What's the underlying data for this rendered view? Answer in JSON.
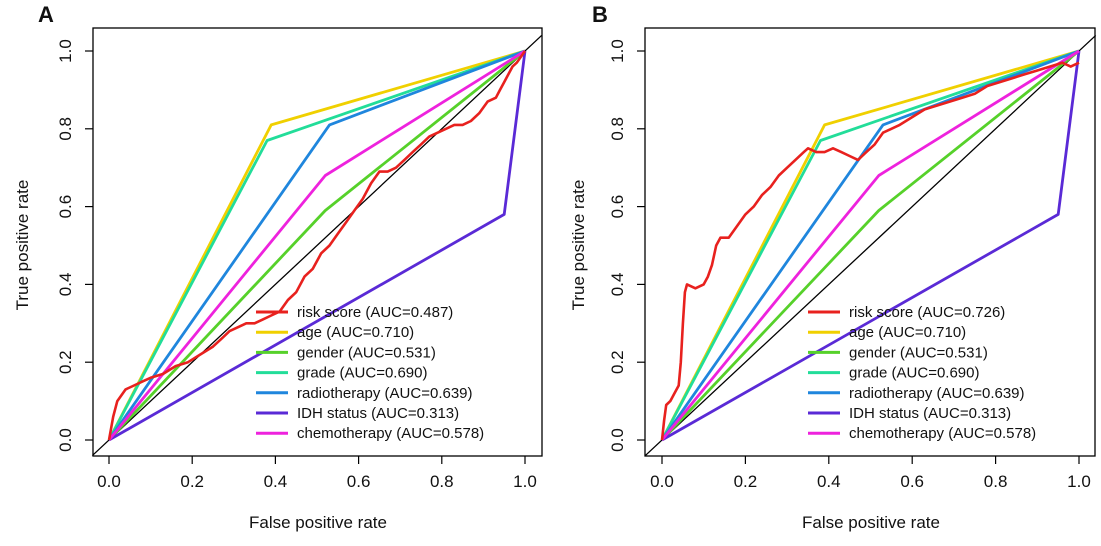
{
  "chart_data": [
    {
      "panel_label": "A",
      "type": "line",
      "xlabel": "False positive rate",
      "ylabel": "True positive rate",
      "xlim": [
        0,
        1
      ],
      "ylim": [
        0,
        1
      ],
      "xticks": [
        "0.0",
        "0.2",
        "0.4",
        "0.6",
        "0.8",
        "1.0"
      ],
      "yticks": [
        "0.0",
        "0.2",
        "0.4",
        "0.6",
        "0.8",
        "1.0"
      ],
      "reference_line": [
        [
          0,
          0
        ],
        [
          1,
          1
        ]
      ],
      "legend_position": "bottom-right",
      "series": [
        {
          "name": "risk score (AUC=0.487)",
          "color": "#e8211e",
          "points": [
            [
              0,
              0
            ],
            [
              0.01,
              0.06
            ],
            [
              0.02,
              0.1
            ],
            [
              0.04,
              0.13
            ],
            [
              0.06,
              0.14
            ],
            [
              0.08,
              0.15
            ],
            [
              0.1,
              0.16
            ],
            [
              0.13,
              0.17
            ],
            [
              0.16,
              0.19
            ],
            [
              0.19,
              0.2
            ],
            [
              0.22,
              0.22
            ],
            [
              0.25,
              0.24
            ],
            [
              0.27,
              0.26
            ],
            [
              0.29,
              0.28
            ],
            [
              0.31,
              0.29
            ],
            [
              0.33,
              0.3
            ],
            [
              0.35,
              0.3
            ],
            [
              0.37,
              0.31
            ],
            [
              0.39,
              0.32
            ],
            [
              0.41,
              0.33
            ],
            [
              0.43,
              0.36
            ],
            [
              0.45,
              0.38
            ],
            [
              0.47,
              0.42
            ],
            [
              0.49,
              0.44
            ],
            [
              0.51,
              0.48
            ],
            [
              0.53,
              0.5
            ],
            [
              0.55,
              0.53
            ],
            [
              0.57,
              0.56
            ],
            [
              0.59,
              0.59
            ],
            [
              0.61,
              0.62
            ],
            [
              0.63,
              0.66
            ],
            [
              0.65,
              0.69
            ],
            [
              0.67,
              0.69
            ],
            [
              0.69,
              0.7
            ],
            [
              0.71,
              0.72
            ],
            [
              0.73,
              0.74
            ],
            [
              0.75,
              0.76
            ],
            [
              0.77,
              0.78
            ],
            [
              0.79,
              0.79
            ],
            [
              0.81,
              0.8
            ],
            [
              0.83,
              0.81
            ],
            [
              0.85,
              0.81
            ],
            [
              0.87,
              0.82
            ],
            [
              0.89,
              0.84
            ],
            [
              0.91,
              0.87
            ],
            [
              0.93,
              0.88
            ],
            [
              0.94,
              0.9
            ],
            [
              0.95,
              0.92
            ],
            [
              0.96,
              0.94
            ],
            [
              0.97,
              0.96
            ],
            [
              0.98,
              0.97
            ],
            [
              1,
              1
            ]
          ]
        },
        {
          "name": "age (AUC=0.710)",
          "color": "#f0d000",
          "points": [
            [
              0,
              0
            ],
            [
              0.39,
              0.81
            ],
            [
              1,
              1
            ]
          ]
        },
        {
          "name": "gender (AUC=0.531)",
          "color": "#56d12a",
          "points": [
            [
              0,
              0
            ],
            [
              0.52,
              0.59
            ],
            [
              1,
              1
            ]
          ]
        },
        {
          "name": "grade (AUC=0.690)",
          "color": "#22dd99",
          "points": [
            [
              0,
              0
            ],
            [
              0.38,
              0.77
            ],
            [
              1,
              1
            ]
          ]
        },
        {
          "name": "radiotherapy (AUC=0.639)",
          "color": "#1f86dd",
          "points": [
            [
              0,
              0
            ],
            [
              0.53,
              0.81
            ],
            [
              1,
              1
            ]
          ]
        },
        {
          "name": "IDH status (AUC=0.313)",
          "color": "#5a2ad6",
          "points": [
            [
              0,
              0
            ],
            [
              0.95,
              0.58
            ],
            [
              1,
              1
            ]
          ]
        },
        {
          "name": "chemotherapy (AUC=0.578)",
          "color": "#ee22dd",
          "points": [
            [
              0,
              0
            ],
            [
              0.52,
              0.68
            ],
            [
              1,
              1
            ]
          ]
        }
      ]
    },
    {
      "panel_label": "B",
      "type": "line",
      "xlabel": "False positive rate",
      "ylabel": "True positive rate",
      "xlim": [
        0,
        1
      ],
      "ylim": [
        0,
        1
      ],
      "xticks": [
        "0.0",
        "0.2",
        "0.4",
        "0.6",
        "0.8",
        "1.0"
      ],
      "yticks": [
        "0.0",
        "0.2",
        "0.4",
        "0.6",
        "0.8",
        "1.0"
      ],
      "reference_line": [
        [
          0,
          0
        ],
        [
          1,
          1
        ]
      ],
      "legend_position": "bottom-right",
      "series": [
        {
          "name": "risk score (AUC=0.726)",
          "color": "#e8211e",
          "points": [
            [
              0,
              0
            ],
            [
              0.005,
              0.05
            ],
            [
              0.01,
              0.09
            ],
            [
              0.02,
              0.1
            ],
            [
              0.03,
              0.12
            ],
            [
              0.04,
              0.14
            ],
            [
              0.045,
              0.2
            ],
            [
              0.05,
              0.3
            ],
            [
              0.055,
              0.38
            ],
            [
              0.06,
              0.4
            ],
            [
              0.08,
              0.39
            ],
            [
              0.1,
              0.4
            ],
            [
              0.11,
              0.42
            ],
            [
              0.12,
              0.45
            ],
            [
              0.13,
              0.5
            ],
            [
              0.14,
              0.52
            ],
            [
              0.16,
              0.52
            ],
            [
              0.18,
              0.55
            ],
            [
              0.2,
              0.58
            ],
            [
              0.22,
              0.6
            ],
            [
              0.24,
              0.63
            ],
            [
              0.26,
              0.65
            ],
            [
              0.28,
              0.68
            ],
            [
              0.3,
              0.7
            ],
            [
              0.32,
              0.72
            ],
            [
              0.34,
              0.74
            ],
            [
              0.35,
              0.75
            ],
            [
              0.37,
              0.74
            ],
            [
              0.39,
              0.74
            ],
            [
              0.41,
              0.75
            ],
            [
              0.43,
              0.74
            ],
            [
              0.45,
              0.73
            ],
            [
              0.47,
              0.72
            ],
            [
              0.49,
              0.74
            ],
            [
              0.51,
              0.76
            ],
            [
              0.53,
              0.79
            ],
            [
              0.55,
              0.8
            ],
            [
              0.57,
              0.81
            ],
            [
              0.6,
              0.83
            ],
            [
              0.63,
              0.85
            ],
            [
              0.66,
              0.86
            ],
            [
              0.69,
              0.87
            ],
            [
              0.72,
              0.88
            ],
            [
              0.75,
              0.89
            ],
            [
              0.78,
              0.91
            ],
            [
              0.81,
              0.92
            ],
            [
              0.84,
              0.93
            ],
            [
              0.87,
              0.94
            ],
            [
              0.9,
              0.95
            ],
            [
              0.93,
              0.96
            ],
            [
              0.96,
              0.97
            ],
            [
              0.98,
              0.96
            ],
            [
              1,
              0.97
            ]
          ]
        },
        {
          "name": "age (AUC=0.710)",
          "color": "#f0d000",
          "points": [
            [
              0,
              0
            ],
            [
              0.39,
              0.81
            ],
            [
              1,
              1
            ]
          ]
        },
        {
          "name": "gender (AUC=0.531)",
          "color": "#56d12a",
          "points": [
            [
              0,
              0
            ],
            [
              0.52,
              0.59
            ],
            [
              1,
              1
            ]
          ]
        },
        {
          "name": "grade (AUC=0.690)",
          "color": "#22dd99",
          "points": [
            [
              0,
              0
            ],
            [
              0.38,
              0.77
            ],
            [
              1,
              1
            ]
          ]
        },
        {
          "name": "radiotherapy (AUC=0.639)",
          "color": "#1f86dd",
          "points": [
            [
              0,
              0
            ],
            [
              0.53,
              0.81
            ],
            [
              1,
              1
            ]
          ]
        },
        {
          "name": "IDH status (AUC=0.313)",
          "color": "#5a2ad6",
          "points": [
            [
              0,
              0
            ],
            [
              0.95,
              0.58
            ],
            [
              1,
              1
            ]
          ]
        },
        {
          "name": "chemotherapy (AUC=0.578)",
          "color": "#ee22dd",
          "points": [
            [
              0,
              0
            ],
            [
              0.52,
              0.68
            ],
            [
              1,
              1
            ]
          ]
        }
      ]
    }
  ]
}
